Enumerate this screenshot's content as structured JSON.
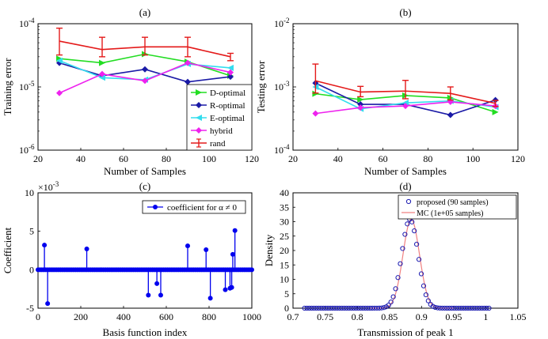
{
  "chart_data": [
    {
      "id": "a",
      "type": "line",
      "title": "(a)",
      "xlabel": "Number of Samples",
      "ylabel": "Training error",
      "yscale": "log",
      "xlim": [
        20,
        120
      ],
      "ylim": [
        1e-06,
        0.0001
      ],
      "xticks": [
        20,
        40,
        60,
        80,
        100,
        120
      ],
      "yticks": [
        {
          "value": 1e-06,
          "base": "10",
          "exp": "-6"
        },
        {
          "value": 1e-05,
          "base": "10",
          "exp": "-5"
        },
        {
          "value": 0.0001,
          "base": "10",
          "exp": "-4"
        }
      ],
      "legend_position": "bottom-right",
      "x": [
        30,
        50,
        70,
        90,
        110
      ],
      "series": [
        {
          "name": "D-optimal",
          "color": "#22dd22",
          "marker": "right-triangle",
          "values": [
            2.8e-05,
            2.4e-05,
            3.3e-05,
            2.5e-05,
            1.5e-05
          ]
        },
        {
          "name": "R-optimal",
          "color": "#1a1aa6",
          "marker": "diamond",
          "values": [
            2.4e-05,
            1.5e-05,
            1.9e-05,
            1.2e-05,
            1.45e-05
          ]
        },
        {
          "name": "E-optimal",
          "color": "#33ddee",
          "marker": "left-triangle",
          "values": [
            2.6e-05,
            1.4e-05,
            1.3e-05,
            2.3e-05,
            2e-05
          ]
        },
        {
          "name": "hybrid",
          "color": "#ee22ee",
          "marker": "diamond",
          "values": [
            8e-06,
            1.6e-05,
            1.25e-05,
            2.4e-05,
            1.7e-05
          ]
        },
        {
          "name": "rand",
          "color": "#e41a1a",
          "marker": "errorbar",
          "values": [
            5.3e-05,
            3.9e-05,
            4.3e-05,
            4.3e-05,
            3e-05
          ],
          "err_low": [
            3.2e-05,
            3e-05,
            3.2e-05,
            3e-05,
            2.6e-05
          ],
          "err_high": [
            8.5e-05,
            6.1e-05,
            6.1e-05,
            6.1e-05,
            3.4e-05
          ]
        }
      ]
    },
    {
      "id": "b",
      "type": "line",
      "title": "(b)",
      "xlabel": "Number of Samples",
      "ylabel": "Testing error",
      "yscale": "log",
      "xlim": [
        20,
        120
      ],
      "ylim": [
        0.0001,
        0.01
      ],
      "xticks": [
        20,
        40,
        60,
        80,
        100,
        120
      ],
      "yticks": [
        {
          "value": 0.0001,
          "base": "10",
          "exp": "-4"
        },
        {
          "value": 0.001,
          "base": "10",
          "exp": "-3"
        },
        {
          "value": 0.01,
          "base": "10",
          "exp": "-2"
        }
      ],
      "x": [
        30,
        50,
        70,
        90,
        110
      ],
      "series": [
        {
          "name": "D-optimal",
          "color": "#22dd22",
          "marker": "right-triangle",
          "values": [
            0.00078,
            0.00063,
            0.00073,
            0.00067,
            0.0004
          ]
        },
        {
          "name": "R-optimal",
          "color": "#1a1aa6",
          "marker": "diamond",
          "values": [
            0.00115,
            0.00053,
            0.00053,
            0.00036,
            0.00062
          ]
        },
        {
          "name": "E-optimal",
          "color": "#33ddee",
          "marker": "left-triangle",
          "values": [
            0.001,
            0.00045,
            0.00056,
            0.0006,
            0.00048
          ]
        },
        {
          "name": "hybrid",
          "color": "#ee22ee",
          "marker": "diamond",
          "values": [
            0.00038,
            0.00047,
            0.0005,
            0.00058,
            0.0005
          ]
        },
        {
          "name": "rand",
          "color": "#e41a1a",
          "marker": "errorbar",
          "values": [
            0.00125,
            0.00083,
            0.00086,
            0.00079,
            0.00055
          ],
          "err_low": [
            0.0008,
            0.0007,
            0.00065,
            0.00062,
            0.00049
          ],
          "err_high": [
            0.0023,
            0.00102,
            0.00127,
            0.001,
            0.00061
          ]
        }
      ]
    },
    {
      "id": "c",
      "type": "stem",
      "title": "(c)",
      "xlabel": "Basis function index",
      "ylabel": "Coefficient",
      "xlim": [
        0,
        1000
      ],
      "ylim": [
        -5,
        10
      ],
      "xticks": [
        0,
        200,
        400,
        600,
        800,
        1000
      ],
      "yticks": [
        -5,
        0,
        5,
        10
      ],
      "y_multiplier": {
        "base": "10",
        "exp": "-3",
        "prefix": "×"
      },
      "legend_position": "top-right",
      "legend_label": "coefficient for α ≠ 0",
      "color": "#0000ee",
      "points": [
        {
          "x": 30,
          "y": 3.2
        },
        {
          "x": 45,
          "y": -4.4
        },
        {
          "x": 228,
          "y": 2.7
        },
        {
          "x": 516,
          "y": -3.3
        },
        {
          "x": 556,
          "y": -1.8
        },
        {
          "x": 574,
          "y": -3.3
        },
        {
          "x": 700,
          "y": 3.1
        },
        {
          "x": 786,
          "y": 2.6
        },
        {
          "x": 806,
          "y": -3.7
        },
        {
          "x": 876,
          "y": -2.6
        },
        {
          "x": 898,
          "y": -2.4
        },
        {
          "x": 906,
          "y": -2.3
        },
        {
          "x": 911,
          "y": 2.0
        },
        {
          "x": 921,
          "y": 5.1
        }
      ],
      "baseline_markers": {
        "from": 0,
        "to": 1000,
        "count": 115
      }
    },
    {
      "id": "d",
      "type": "scatter-line",
      "title": "(d)",
      "xlabel": "Transmission of peak 1",
      "ylabel": "Density",
      "xlim": [
        0.7,
        1.05
      ],
      "ylim": [
        0,
        40
      ],
      "xticks": [
        0.7,
        0.75,
        0.8,
        0.85,
        0.9,
        0.95,
        1.0,
        1.05
      ],
      "xtick_labels": [
        "0.7",
        "0.75",
        "0.8",
        "0.85",
        "0.9",
        "0.95",
        "1",
        "1.05"
      ],
      "yticks": [
        0,
        5,
        10,
        15,
        20,
        25,
        30,
        35,
        40
      ],
      "legend_position": "top-right",
      "series": [
        {
          "name": "proposed (90 samples)",
          "color": "#1a1ab0",
          "marker": "circle",
          "mean": 0.882,
          "std": 0.0128,
          "peak": 30.8,
          "x_range": [
            0.718,
            1.005
          ],
          "n_markers": 80
        },
        {
          "name": "MC (1e+05 samples)",
          "color": "#f08080",
          "marker": "line",
          "mean": 0.884,
          "std": 0.0128,
          "peak": 30.8,
          "x_range": [
            0.82,
            0.95
          ]
        }
      ]
    }
  ]
}
